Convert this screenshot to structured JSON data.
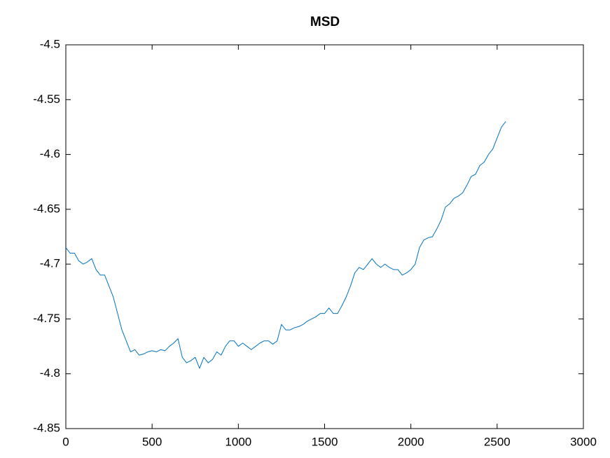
{
  "chart_data": {
    "type": "line",
    "title": "MSD",
    "x": [
      0,
      25,
      50,
      75,
      100,
      125,
      150,
      175,
      200,
      225,
      250,
      275,
      300,
      325,
      350,
      375,
      400,
      425,
      450,
      475,
      500,
      525,
      550,
      575,
      600,
      625,
      650,
      675,
      700,
      725,
      750,
      775,
      800,
      825,
      850,
      875,
      900,
      925,
      950,
      975,
      1000,
      1025,
      1050,
      1075,
      1100,
      1125,
      1150,
      1175,
      1200,
      1225,
      1250,
      1275,
      1300,
      1325,
      1350,
      1375,
      1400,
      1425,
      1450,
      1475,
      1500,
      1525,
      1550,
      1575,
      1600,
      1625,
      1650,
      1675,
      1700,
      1725,
      1750,
      1775,
      1800,
      1825,
      1850,
      1875,
      1900,
      1925,
      1950,
      1975,
      2000,
      2025,
      2050,
      2075,
      2100,
      2125,
      2150,
      2175,
      2200,
      2225,
      2250,
      2275,
      2300,
      2325,
      2350,
      2375,
      2400,
      2425,
      2450,
      2475,
      2500,
      2525,
      2550
    ],
    "series": [
      {
        "color": "#0072bd",
        "values": [
          -4.685,
          -4.69,
          -4.69,
          -4.697,
          -4.7,
          -4.698,
          -4.695,
          -4.705,
          -4.71,
          -4.71,
          -4.72,
          -4.73,
          -4.745,
          -4.76,
          -4.77,
          -4.78,
          -4.778,
          -4.783,
          -4.782,
          -4.78,
          -4.779,
          -4.78,
          -4.778,
          -4.779,
          -4.775,
          -4.772,
          -4.768,
          -4.785,
          -4.79,
          -4.788,
          -4.785,
          -4.795,
          -4.785,
          -4.79,
          -4.787,
          -4.78,
          -4.783,
          -4.775,
          -4.77,
          -4.77,
          -4.775,
          -4.772,
          -4.775,
          -4.778,
          -4.775,
          -4.772,
          -4.77,
          -4.77,
          -4.773,
          -4.77,
          -4.755,
          -4.76,
          -4.76,
          -4.758,
          -4.757,
          -4.755,
          -4.752,
          -4.75,
          -4.748,
          -4.745,
          -4.745,
          -4.74,
          -4.745,
          -4.745,
          -4.738,
          -4.73,
          -4.72,
          -4.708,
          -4.703,
          -4.705,
          -4.7,
          -4.695,
          -4.7,
          -4.703,
          -4.7,
          -4.703,
          -4.705,
          -4.705,
          -4.71,
          -4.708,
          -4.705,
          -4.7,
          -4.685,
          -4.678,
          -4.676,
          -4.675,
          -4.668,
          -4.66,
          -4.648,
          -4.645,
          -4.64,
          -4.638,
          -4.635,
          -4.628,
          -4.62,
          -4.618,
          -4.61,
          -4.607,
          -4.6,
          -4.595,
          -4.585,
          -4.575,
          -4.57
        ]
      }
    ],
    "xlim": [
      0,
      3000
    ],
    "xticks": [
      0,
      500,
      1000,
      1500,
      2000,
      2500,
      3000
    ],
    "ylim": [
      -4.85,
      -4.5
    ],
    "yticks": [
      -4.85,
      -4.8,
      -4.75,
      -4.7,
      -4.65,
      -4.6,
      -4.55,
      -4.5
    ]
  }
}
